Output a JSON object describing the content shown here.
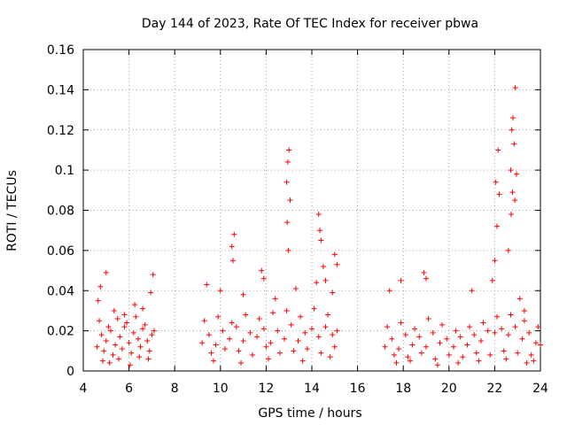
{
  "chart_data": {
    "type": "scatter",
    "title": "Day 144 of 2023, Rate Of TEC Index for receiver pbwa",
    "xlabel": "GPS time / hours",
    "ylabel": "ROTI / TECUs",
    "xlim": [
      4,
      24
    ],
    "ylim": [
      0,
      0.16
    ],
    "xticks": [
      "4",
      "6",
      "8",
      "10",
      "12",
      "14",
      "16",
      "18",
      "20",
      "22",
      "24"
    ],
    "yticks": [
      "0",
      "0.02",
      "0.04",
      "0.06",
      "0.08",
      "0.1",
      "0.12",
      "0.14",
      "0.16"
    ],
    "grid": true,
    "marker": "+",
    "color": "#ff0000",
    "series": [
      {
        "x": [
          4.6,
          4.8,
          5.0,
          5.2,
          5.4,
          5.6,
          5.8,
          6.0,
          6.2,
          6.4,
          6.6,
          6.8,
          7.0,
          4.7,
          4.9,
          5.1,
          5.3,
          5.5,
          5.7,
          5.9,
          6.1,
          6.3,
          6.5,
          6.7,
          6.9,
          7.1,
          4.65,
          4.75,
          5.0,
          5.35,
          5.8,
          6.25,
          6.6,
          6.95,
          7.05,
          4.85,
          5.15,
          5.55,
          6.05,
          6.45,
          6.85
        ],
        "y": [
          0.012,
          0.018,
          0.015,
          0.02,
          0.013,
          0.017,
          0.022,
          0.014,
          0.019,
          0.016,
          0.021,
          0.015,
          0.018,
          0.025,
          0.01,
          0.022,
          0.008,
          0.026,
          0.011,
          0.024,
          0.009,
          0.027,
          0.012,
          0.023,
          0.01,
          0.02,
          0.035,
          0.042,
          0.049,
          0.03,
          0.028,
          0.033,
          0.031,
          0.039,
          0.048,
          0.005,
          0.004,
          0.006,
          0.003,
          0.007,
          0.006
        ]
      },
      {
        "x": [
          9.2,
          9.5,
          9.8,
          10.1,
          10.4,
          10.7,
          11.0,
          11.3,
          11.6,
          11.9,
          12.2,
          12.5,
          12.8,
          13.1,
          13.4,
          13.7,
          14.0,
          14.3,
          14.6,
          14.9,
          15.1,
          9.3,
          9.6,
          9.9,
          10.2,
          10.5,
          10.8,
          11.1,
          11.4,
          11.7,
          12.0,
          12.3,
          12.6,
          12.9,
          13.2,
          13.5,
          13.8,
          14.1,
          14.4,
          14.7,
          15.0,
          10.5,
          10.6,
          10.55,
          11.8,
          11.9,
          12.9,
          12.95,
          13.0,
          13.05,
          12.92,
          12.97,
          14.3,
          14.35,
          14.4,
          14.5,
          14.6,
          15.0,
          15.1,
          9.4,
          10.0,
          11.0,
          12.4,
          13.3,
          14.2,
          14.9,
          9.7,
          10.9,
          12.1,
          13.6,
          14.8
        ],
        "y": [
          0.014,
          0.018,
          0.013,
          0.02,
          0.016,
          0.022,
          0.015,
          0.019,
          0.017,
          0.021,
          0.014,
          0.02,
          0.016,
          0.023,
          0.015,
          0.019,
          0.021,
          0.017,
          0.022,
          0.018,
          0.02,
          0.025,
          0.009,
          0.027,
          0.011,
          0.024,
          0.01,
          0.028,
          0.008,
          0.026,
          0.012,
          0.029,
          0.009,
          0.03,
          0.01,
          0.027,
          0.011,
          0.031,
          0.009,
          0.028,
          0.012,
          0.062,
          0.068,
          0.055,
          0.05,
          0.046,
          0.094,
          0.104,
          0.11,
          0.085,
          0.074,
          0.06,
          0.078,
          0.07,
          0.065,
          0.052,
          0.045,
          0.058,
          0.053,
          0.043,
          0.04,
          0.038,
          0.036,
          0.041,
          0.044,
          0.039,
          0.005,
          0.004,
          0.006,
          0.005,
          0.007
        ]
      },
      {
        "x": [
          17.2,
          17.5,
          17.8,
          18.1,
          18.4,
          18.7,
          19.0,
          19.3,
          19.6,
          19.9,
          20.2,
          20.5,
          20.8,
          21.1,
          21.4,
          21.7,
          22.0,
          22.3,
          22.6,
          22.9,
          23.2,
          23.5,
          23.8,
          24.0,
          17.3,
          17.6,
          17.9,
          18.2,
          18.5,
          18.8,
          19.1,
          19.4,
          19.7,
          20.0,
          20.3,
          20.6,
          20.9,
          21.2,
          21.5,
          21.8,
          22.1,
          22.4,
          22.7,
          23.0,
          23.3,
          23.6,
          23.9,
          17.4,
          17.9,
          18.9,
          19.0,
          21.0,
          21.9,
          22.0,
          22.1,
          22.2,
          22.05,
          22.15,
          22.6,
          22.7,
          22.75,
          22.8,
          22.85,
          22.9,
          22.95,
          22.72,
          22.78,
          22.88,
          23.1,
          23.3,
          17.7,
          18.3,
          19.5,
          20.4,
          21.3,
          22.5,
          23.4,
          23.7
        ],
        "y": [
          0.012,
          0.016,
          0.011,
          0.018,
          0.013,
          0.017,
          0.012,
          0.019,
          0.014,
          0.016,
          0.012,
          0.017,
          0.013,
          0.018,
          0.015,
          0.02,
          0.019,
          0.021,
          0.018,
          0.022,
          0.016,
          0.019,
          0.014,
          0.013,
          0.022,
          0.008,
          0.024,
          0.007,
          0.021,
          0.009,
          0.026,
          0.006,
          0.023,
          0.008,
          0.02,
          0.007,
          0.022,
          0.009,
          0.024,
          0.008,
          0.027,
          0.01,
          0.028,
          0.009,
          0.025,
          0.008,
          0.022,
          0.04,
          0.045,
          0.049,
          0.046,
          0.04,
          0.045,
          0.055,
          0.072,
          0.088,
          0.094,
          0.11,
          0.06,
          0.1,
          0.12,
          0.126,
          0.113,
          0.141,
          0.098,
          0.078,
          0.089,
          0.085,
          0.036,
          0.03,
          0.004,
          0.005,
          0.003,
          0.004,
          0.005,
          0.006,
          0.004,
          0.005
        ]
      }
    ]
  }
}
